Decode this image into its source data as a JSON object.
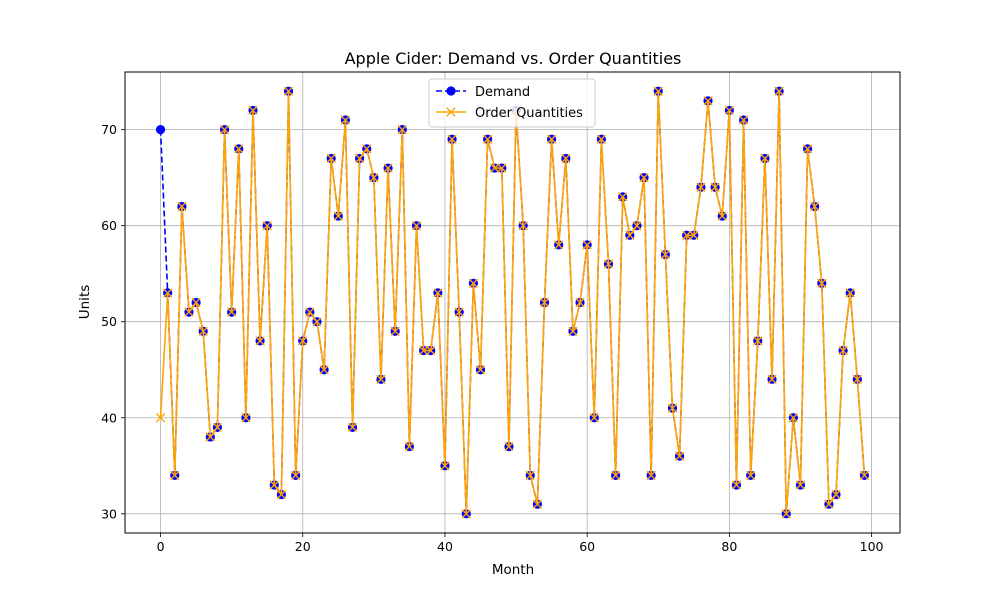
{
  "chart_data": {
    "type": "line",
    "title": "Apple Cider: Demand vs. Order Quantities",
    "xlabel": "Month",
    "ylabel": "Units",
    "xlim": [
      -5,
      104
    ],
    "ylim": [
      28,
      76
    ],
    "xticks": [
      0,
      20,
      40,
      60,
      80,
      100
    ],
    "yticks": [
      30,
      40,
      50,
      60,
      70
    ],
    "grid": true,
    "legend_position": "upper center",
    "x": [
      0,
      1,
      2,
      3,
      4,
      5,
      6,
      7,
      8,
      9,
      10,
      11,
      12,
      13,
      14,
      15,
      16,
      17,
      18,
      19,
      20,
      21,
      22,
      23,
      24,
      25,
      26,
      27,
      28,
      29,
      30,
      31,
      32,
      33,
      34,
      35,
      36,
      37,
      38,
      39,
      40,
      41,
      42,
      43,
      44,
      45,
      46,
      47,
      48,
      49,
      50,
      51,
      52,
      53,
      54,
      55,
      56,
      57,
      58,
      59,
      60,
      61,
      62,
      63,
      64,
      65,
      66,
      67,
      68,
      69,
      70,
      71,
      72,
      73,
      74,
      75,
      76,
      77,
      78,
      79,
      80,
      81,
      82,
      83,
      84,
      85,
      86,
      87,
      88,
      89,
      90,
      91,
      92,
      93,
      94,
      95,
      96,
      97,
      98,
      99
    ],
    "series": [
      {
        "name": "Demand",
        "color": "#0000ff",
        "linestyle": "dashed",
        "marker": "circle",
        "values": [
          70,
          53,
          34,
          62,
          51,
          52,
          49,
          38,
          39,
          70,
          51,
          68,
          40,
          72,
          48,
          60,
          33,
          32,
          74,
          34,
          48,
          51,
          50,
          45,
          67,
          61,
          71,
          39,
          67,
          68,
          65,
          44,
          66,
          49,
          70,
          37,
          60,
          47,
          47,
          53,
          35,
          69,
          51,
          30,
          54,
          45,
          69,
          66,
          66,
          37,
          72,
          60,
          34,
          31,
          52,
          69,
          58,
          67,
          49,
          52,
          58,
          40,
          69,
          56,
          34,
          63,
          59,
          60,
          65,
          34,
          74,
          57,
          41,
          36,
          59,
          59,
          64,
          73,
          64,
          61,
          72,
          33,
          71,
          34,
          48,
          67,
          44,
          74,
          30,
          40,
          33,
          68,
          62,
          54,
          31,
          32,
          47,
          53,
          44,
          34
        ]
      },
      {
        "name": "Order Quantities",
        "color": "#ffa500",
        "linestyle": "solid",
        "marker": "x",
        "values": [
          40,
          53,
          34,
          62,
          51,
          52,
          49,
          38,
          39,
          70,
          51,
          68,
          40,
          72,
          48,
          60,
          33,
          32,
          74,
          34,
          48,
          51,
          50,
          45,
          67,
          61,
          71,
          39,
          67,
          68,
          65,
          44,
          66,
          49,
          70,
          37,
          60,
          47,
          47,
          53,
          35,
          69,
          51,
          30,
          54,
          45,
          69,
          66,
          66,
          37,
          72,
          60,
          34,
          31,
          52,
          69,
          58,
          67,
          49,
          52,
          58,
          40,
          69,
          56,
          34,
          63,
          59,
          60,
          65,
          34,
          74,
          57,
          41,
          36,
          59,
          59,
          64,
          73,
          64,
          61,
          72,
          33,
          71,
          34,
          48,
          67,
          44,
          74,
          30,
          40,
          33,
          68,
          62,
          54,
          31,
          32,
          47,
          53,
          44,
          34
        ]
      }
    ]
  }
}
